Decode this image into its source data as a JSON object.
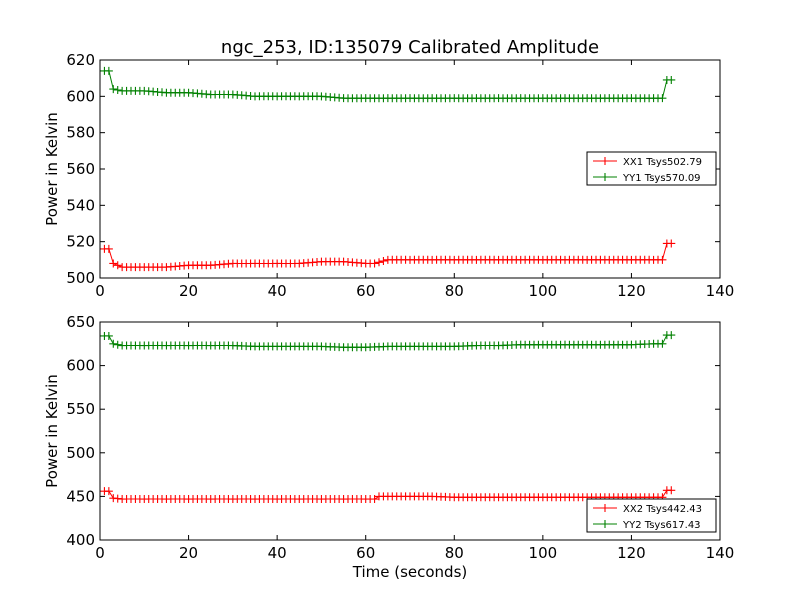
{
  "figure": {
    "title": "ngc_253, ID:135079 Calibrated Amplitude",
    "xlabel": "Time (seconds)"
  },
  "colors": {
    "xx": "#ff0000",
    "yy": "#008000",
    "axes": "#000000"
  },
  "chart_data": [
    {
      "type": "line",
      "title": "ngc_253, ID:135079 Calibrated Amplitude",
      "xlabel": "",
      "ylabel": "Power in Kelvin",
      "xlim": [
        0,
        140
      ],
      "ylim": [
        500,
        620
      ],
      "xticks": [
        "0",
        "20",
        "40",
        "60",
        "80",
        "100",
        "120",
        "140"
      ],
      "yticks": [
        "500",
        "520",
        "540",
        "560",
        "580",
        "600",
        "620"
      ],
      "grid": false,
      "legend": "center-right",
      "marker": "plus",
      "series": [
        {
          "name": "XX1 Tsys502.79",
          "color": "#ff0000",
          "x": [
            1,
            2,
            3,
            5,
            10,
            15,
            20,
            25,
            30,
            35,
            40,
            45,
            50,
            55,
            60,
            62,
            65,
            70,
            75,
            80,
            85,
            90,
            95,
            100,
            105,
            110,
            115,
            120,
            125,
            127,
            128,
            129
          ],
          "y": [
            516,
            516,
            508,
            506,
            506,
            506,
            507,
            507,
            508,
            508,
            508,
            508,
            509,
            509,
            508,
            508,
            510,
            510,
            510,
            510,
            510,
            510,
            510,
            510,
            510,
            510,
            510,
            510,
            510,
            510,
            519,
            519
          ]
        },
        {
          "name": "YY1 Tsys570.09",
          "color": "#008000",
          "x": [
            1,
            2,
            3,
            5,
            10,
            15,
            20,
            25,
            30,
            35,
            40,
            45,
            50,
            55,
            60,
            65,
            70,
            75,
            80,
            85,
            90,
            95,
            100,
            105,
            110,
            115,
            120,
            125,
            127,
            128,
            129
          ],
          "y": [
            614,
            614,
            604,
            603,
            603,
            602,
            602,
            601,
            601,
            600,
            600,
            600,
            600,
            599,
            599,
            599,
            599,
            599,
            599,
            599,
            599,
            599,
            599,
            599,
            599,
            599,
            599,
            599,
            599,
            609,
            609
          ]
        }
      ]
    },
    {
      "type": "line",
      "title": "",
      "xlabel": "Time (seconds)",
      "ylabel": "Power in Kelvin",
      "xlim": [
        0,
        140
      ],
      "ylim": [
        400,
        650
      ],
      "xticks": [
        "0",
        "20",
        "40",
        "60",
        "80",
        "100",
        "120",
        "140"
      ],
      "yticks": [
        "400",
        "450",
        "500",
        "550",
        "600",
        "650"
      ],
      "grid": false,
      "legend": "bottom-right",
      "marker": "plus",
      "series": [
        {
          "name": "XX2 Tsys442.43",
          "color": "#ff0000",
          "x": [
            1,
            2,
            3,
            5,
            10,
            15,
            20,
            25,
            30,
            35,
            40,
            45,
            50,
            55,
            60,
            62,
            63,
            65,
            70,
            75,
            80,
            85,
            90,
            95,
            100,
            105,
            110,
            115,
            120,
            125,
            127,
            128,
            129
          ],
          "y": [
            456,
            456,
            448,
            447,
            447,
            447,
            447,
            447,
            447,
            447,
            447,
            447,
            447,
            447,
            447,
            447,
            450,
            450,
            450,
            450,
            449,
            449,
            449,
            449,
            449,
            449,
            449,
            449,
            449,
            449,
            449,
            457,
            457
          ]
        },
        {
          "name": "YY2 Tsys617.43",
          "color": "#008000",
          "x": [
            1,
            2,
            3,
            5,
            10,
            15,
            20,
            25,
            30,
            35,
            40,
            45,
            50,
            55,
            60,
            65,
            70,
            75,
            80,
            85,
            90,
            95,
            100,
            105,
            110,
            115,
            120,
            125,
            127,
            128,
            129
          ],
          "y": [
            634,
            634,
            625,
            623,
            623,
            623,
            623,
            623,
            623,
            622,
            622,
            622,
            622,
            621,
            621,
            622,
            622,
            622,
            622,
            623,
            623,
            624,
            624,
            624,
            624,
            624,
            624,
            625,
            625,
            635,
            635
          ]
        }
      ]
    }
  ]
}
